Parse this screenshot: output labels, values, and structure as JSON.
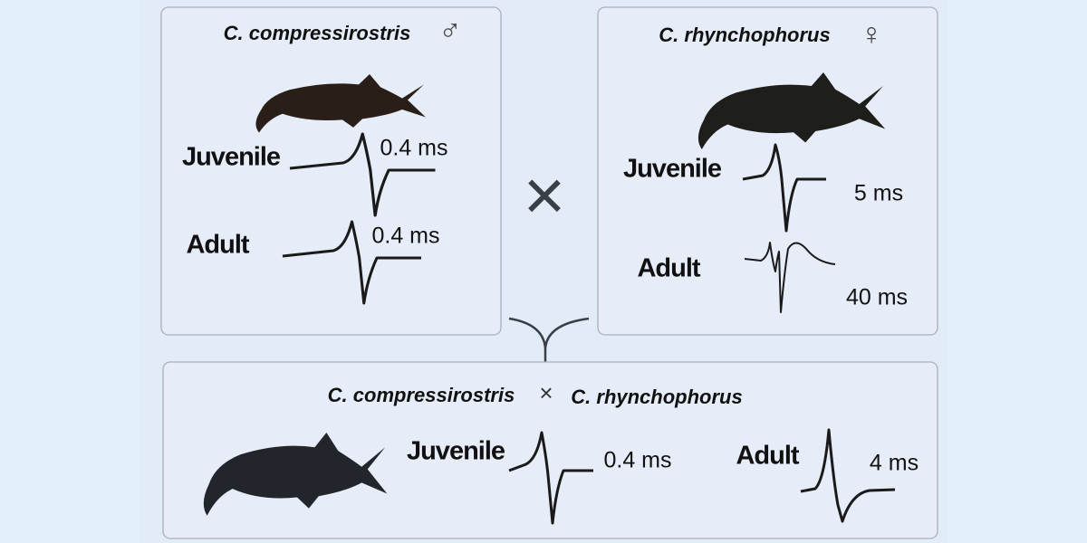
{
  "parents": [
    {
      "species": "C. compressirostris",
      "sex_symbol": "♂",
      "traces": [
        {
          "stage": "Juvenile",
          "duration": "0.4 ms"
        },
        {
          "stage": "Adult",
          "duration": "0.4 ms"
        }
      ]
    },
    {
      "species": "C. rhynchophorus",
      "sex_symbol": "♀",
      "traces": [
        {
          "stage": "Juvenile",
          "duration": "5 ms"
        },
        {
          "stage": "Adult",
          "duration": "40 ms"
        }
      ]
    }
  ],
  "cross_symbol": "×",
  "hybrid": {
    "species_a": "C. compressirostris",
    "cross_symbol": "×",
    "species_b": "C. rhynchophorus",
    "traces": [
      {
        "stage": "Juvenile",
        "duration": "0.4 ms"
      },
      {
        "stage": "Adult",
        "duration": "4 ms"
      }
    ]
  }
}
